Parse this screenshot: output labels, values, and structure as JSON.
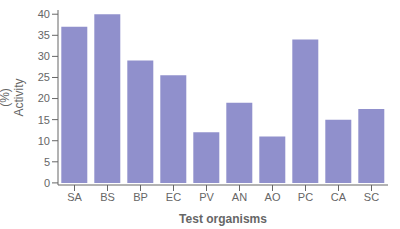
{
  "chart_data": {
    "type": "bar",
    "categories": [
      "SA",
      "BS",
      "BP",
      "EC",
      "PV",
      "AN",
      "AO",
      "PC",
      "CA",
      "SC"
    ],
    "values": [
      37,
      40,
      29,
      25.5,
      12,
      19,
      11,
      34,
      15,
      17.5
    ],
    "color": "#9090cc",
    "xlabel": "Test organisms",
    "ylabel": "(%)\nActivity",
    "ylim": [
      -0.5,
      41
    ],
    "yticks": [
      0,
      5,
      10,
      15,
      20,
      25,
      30,
      35,
      40
    ],
    "grid": false
  }
}
